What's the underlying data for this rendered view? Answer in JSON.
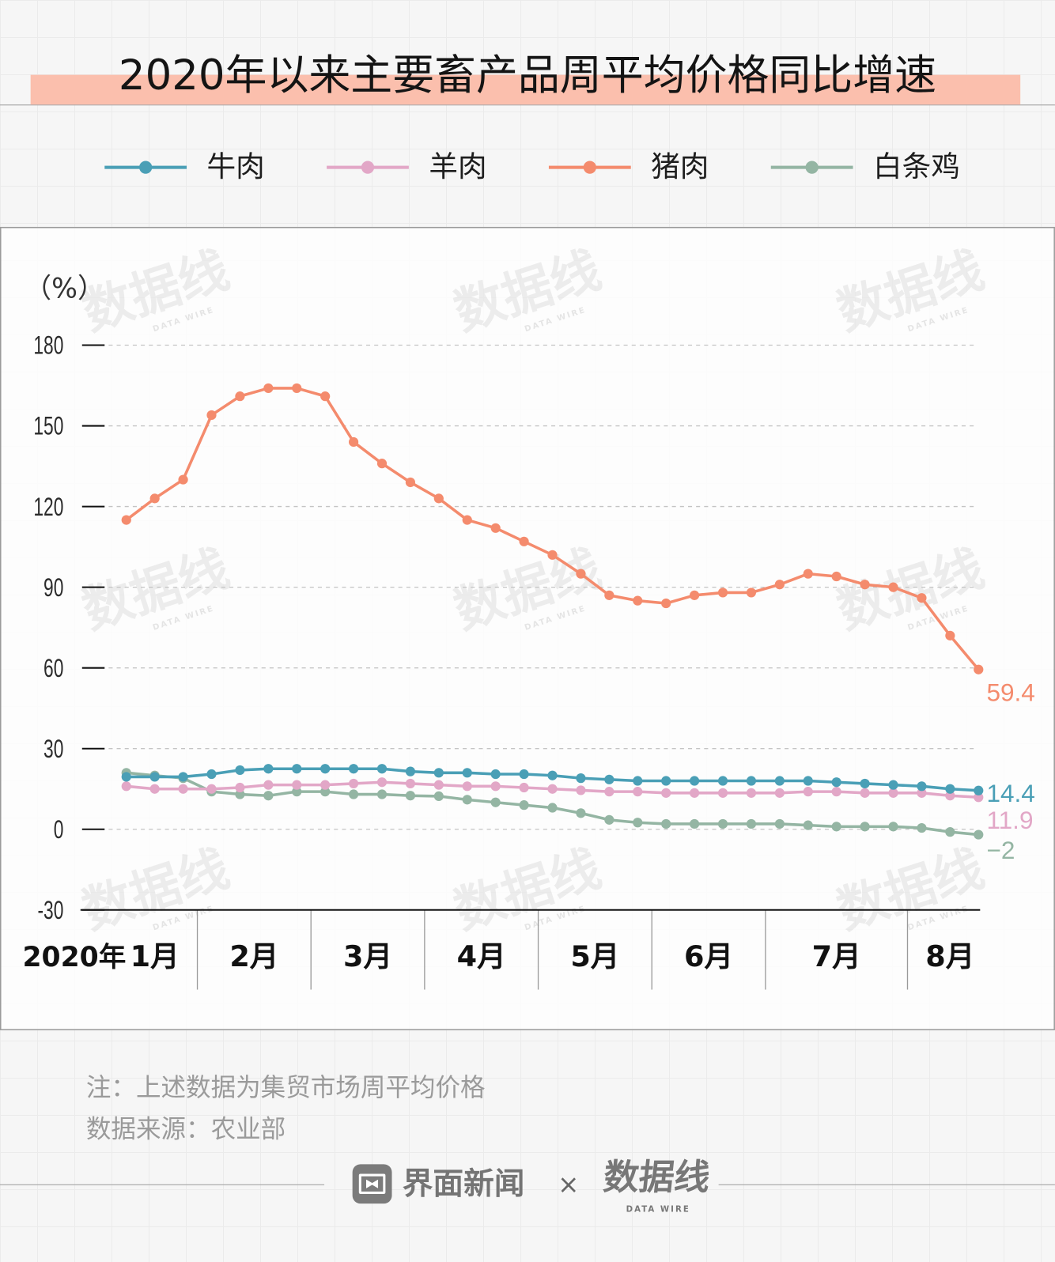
{
  "colors": {
    "title_bar": "#fbbfad",
    "background": "#f6f6f6",
    "frame_border": "#9a9a9a"
  },
  "chart_data": {
    "type": "line",
    "title": "2020年以来主要畜产品周平均价格同比增速",
    "ylabel": "（%）",
    "ylim": [
      -30,
      180
    ],
    "yticks": [
      180,
      150,
      120,
      90,
      60,
      30,
      0,
      -30
    ],
    "x_year_label": "2020年",
    "x_ticks": [
      "1月",
      "2月",
      "3月",
      "4月",
      "5月",
      "6月",
      "7月",
      "8月"
    ],
    "x": [
      "1月",
      "1月",
      "1月",
      "2月",
      "2月",
      "2月",
      "2月",
      "3月",
      "3月",
      "3月",
      "3月",
      "4月",
      "4月",
      "4月",
      "4月",
      "5月",
      "5月",
      "5月",
      "5月",
      "6月",
      "6月",
      "6月",
      "6月",
      "7月",
      "7月",
      "7月",
      "7月",
      "7月",
      "8月",
      "8月",
      "8月"
    ],
    "legend_position": "top",
    "grid": true,
    "series": [
      {
        "name": "牛肉",
        "color": "#4a9fb6",
        "values": [
          19.5,
          19.5,
          19.5,
          20.5,
          22,
          22.5,
          22.5,
          22.5,
          22.5,
          22.5,
          21.5,
          21,
          21,
          20.5,
          20.5,
          20,
          19,
          18.5,
          18,
          18,
          18,
          18,
          18,
          18,
          18,
          17.5,
          17,
          16.5,
          16,
          15,
          14.4
        ],
        "end_label": "14.4"
      },
      {
        "name": "羊肉",
        "color": "#e2a7c7",
        "values": [
          16,
          15,
          15,
          15,
          15.5,
          16.5,
          16.5,
          16.5,
          17,
          17.5,
          17,
          16.5,
          16,
          16,
          15.5,
          15,
          14.5,
          14,
          14,
          13.5,
          13.5,
          13.5,
          13.5,
          13.5,
          14,
          14,
          13.5,
          13.5,
          13.5,
          12.5,
          11.9
        ],
        "end_label": "11.9"
      },
      {
        "name": "猪肉",
        "color": "#f48b6d",
        "values": [
          115,
          123,
          130,
          154,
          161,
          164,
          164,
          161,
          144,
          136,
          129,
          123,
          115,
          112,
          107,
          102,
          95,
          87,
          85,
          84,
          87,
          88,
          88,
          91,
          95,
          94,
          91,
          90,
          86,
          72,
          59.4
        ],
        "end_label": "59.4"
      },
      {
        "name": "白条鸡",
        "color": "#94b5a3",
        "values": [
          21,
          20,
          19,
          14,
          13,
          12.5,
          14,
          14,
          13,
          13,
          12.5,
          12.3,
          11,
          10,
          9,
          8,
          6,
          3.5,
          2.5,
          2,
          2,
          2,
          2,
          2,
          1.5,
          1,
          1,
          1,
          0.5,
          -1,
          -2
        ],
        "end_label": "−2"
      }
    ]
  },
  "watermark": {
    "text": "数据线",
    "sub": "DATA WIRE"
  },
  "footer": {
    "note": "注：上述数据为集贸市场周平均价格",
    "source": "数据来源：农业部",
    "brand_icon": "jiemian-logo-icon",
    "brand": "界面新闻",
    "separator": "×",
    "partner": "数据线",
    "partner_sub": "DATA WIRE"
  }
}
